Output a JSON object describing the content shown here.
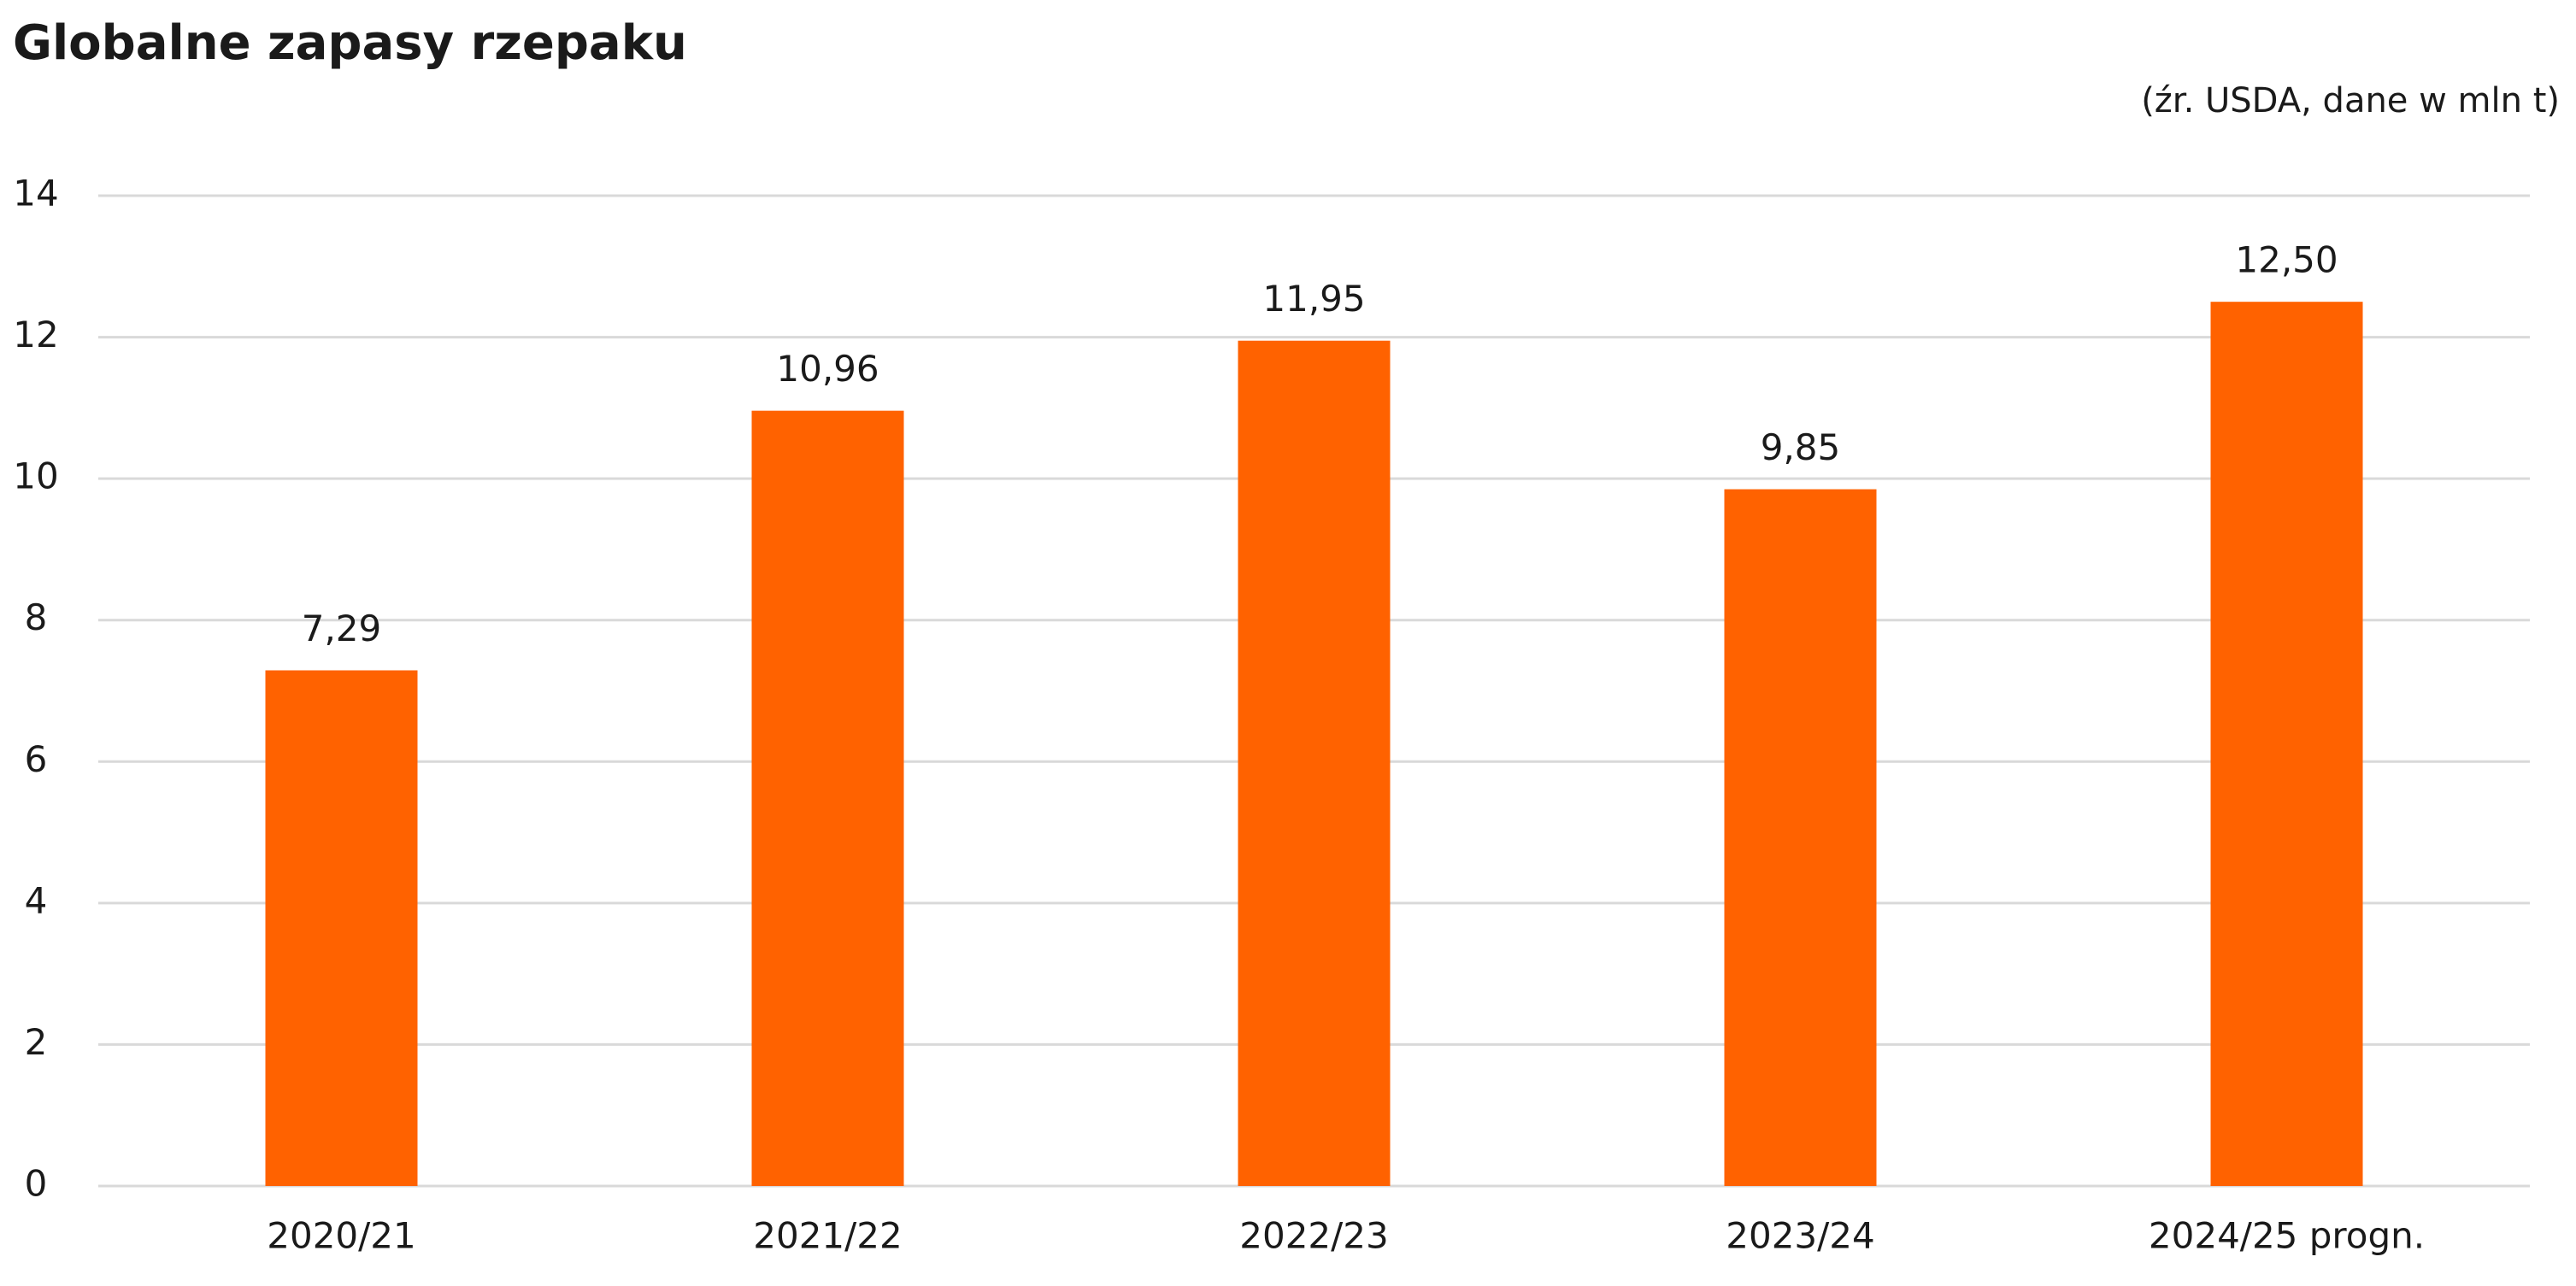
{
  "chart_data": {
    "type": "bar",
    "title": "Globalne zapasy rzepaku",
    "subtitle": "(źr. USDA, dane w mln t)",
    "categories": [
      "2020/21",
      "2021/22",
      "2022/23",
      "2023/24",
      "2024/25 progn."
    ],
    "values": [
      7.29,
      10.96,
      11.95,
      9.85,
      12.5
    ],
    "value_labels": [
      "7,29",
      "10,96",
      "11,95",
      "9,85",
      "12,50"
    ],
    "color": "#ff6200",
    "ylim": [
      0,
      14
    ],
    "yticks": [
      0,
      2,
      4,
      6,
      8,
      10,
      12,
      14
    ],
    "grid": true
  }
}
